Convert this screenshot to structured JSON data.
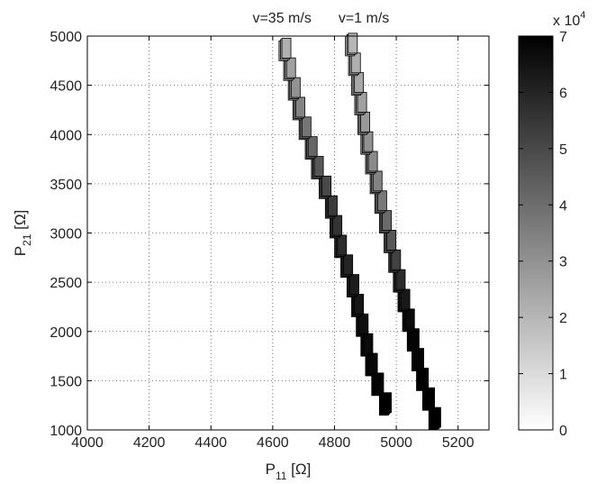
{
  "chart_data": {
    "type": "scatter",
    "title": "",
    "xlabel": {
      "main": "P",
      "sub": "11",
      "unit": " [Ω]"
    },
    "ylabel": {
      "main": "P",
      "sub": "21",
      "unit": " [Ω]"
    },
    "xlim": [
      4000,
      5300
    ],
    "ylim": [
      1000,
      5000
    ],
    "xticks": [
      4000,
      4200,
      4400,
      4600,
      4800,
      5000,
      5200
    ],
    "yticks": [
      1000,
      1500,
      2000,
      2500,
      3000,
      3500,
      4000,
      4500,
      5000
    ],
    "grid": true,
    "annotations": [
      {
        "text": "v=35 m/s",
        "x": 4630,
        "y": 5000
      },
      {
        "text": "v=1 m/s",
        "x": 4895,
        "y": 5000
      }
    ],
    "colorbar": {
      "min": 0,
      "max": 7,
      "ticks": [
        0,
        1,
        2,
        3,
        4,
        5,
        6,
        7
      ],
      "exponent_label": {
        "base": "x 10",
        "exp": "4"
      },
      "colormap": "gray-reversed"
    },
    "series": [
      {
        "points": [
          {
            "x": 4960,
            "y": 1250,
            "c": 7.0
          },
          {
            "x": 4935,
            "y": 1450,
            "c": 6.9
          },
          {
            "x": 4915,
            "y": 1650,
            "c": 6.8
          },
          {
            "x": 4900,
            "y": 1850,
            "c": 6.7
          },
          {
            "x": 4885,
            "y": 2050,
            "c": 6.6
          },
          {
            "x": 4870,
            "y": 2250,
            "c": 6.4
          },
          {
            "x": 4855,
            "y": 2450,
            "c": 6.2
          },
          {
            "x": 4835,
            "y": 2650,
            "c": 6.0
          },
          {
            "x": 4815,
            "y": 2850,
            "c": 5.8
          },
          {
            "x": 4800,
            "y": 3050,
            "c": 5.6
          },
          {
            "x": 4785,
            "y": 3250,
            "c": 5.4
          },
          {
            "x": 4765,
            "y": 3450,
            "c": 5.0
          },
          {
            "x": 4740,
            "y": 3650,
            "c": 4.6
          },
          {
            "x": 4720,
            "y": 3850,
            "c": 4.2
          },
          {
            "x": 4700,
            "y": 4050,
            "c": 3.8
          },
          {
            "x": 4680,
            "y": 4250,
            "c": 3.4
          },
          {
            "x": 4665,
            "y": 4450,
            "c": 3.0
          },
          {
            "x": 4650,
            "y": 4650,
            "c": 2.6
          },
          {
            "x": 4635,
            "y": 4850,
            "c": 2.2
          }
        ]
      },
      {
        "points": [
          {
            "x": 5120,
            "y": 1100,
            "c": 7.0
          },
          {
            "x": 5100,
            "y": 1300,
            "c": 7.0
          },
          {
            "x": 5080,
            "y": 1500,
            "c": 7.0
          },
          {
            "x": 5065,
            "y": 1700,
            "c": 6.9
          },
          {
            "x": 5050,
            "y": 1900,
            "c": 6.9
          },
          {
            "x": 5035,
            "y": 2100,
            "c": 6.7
          },
          {
            "x": 5020,
            "y": 2300,
            "c": 6.3
          },
          {
            "x": 5005,
            "y": 2500,
            "c": 5.8
          },
          {
            "x": 4990,
            "y": 2700,
            "c": 5.2
          },
          {
            "x": 4975,
            "y": 2900,
            "c": 4.6
          },
          {
            "x": 4960,
            "y": 3100,
            "c": 4.1
          },
          {
            "x": 4945,
            "y": 3300,
            "c": 3.7
          },
          {
            "x": 4930,
            "y": 3500,
            "c": 3.4
          },
          {
            "x": 4915,
            "y": 3700,
            "c": 3.2
          },
          {
            "x": 4900,
            "y": 3900,
            "c": 3.0
          },
          {
            "x": 4890,
            "y": 4100,
            "c": 2.8
          },
          {
            "x": 4880,
            "y": 4300,
            "c": 2.6
          },
          {
            "x": 4870,
            "y": 4500,
            "c": 2.4
          },
          {
            "x": 4860,
            "y": 4700,
            "c": 2.2
          },
          {
            "x": 4850,
            "y": 4900,
            "c": 2.0
          }
        ]
      }
    ]
  }
}
